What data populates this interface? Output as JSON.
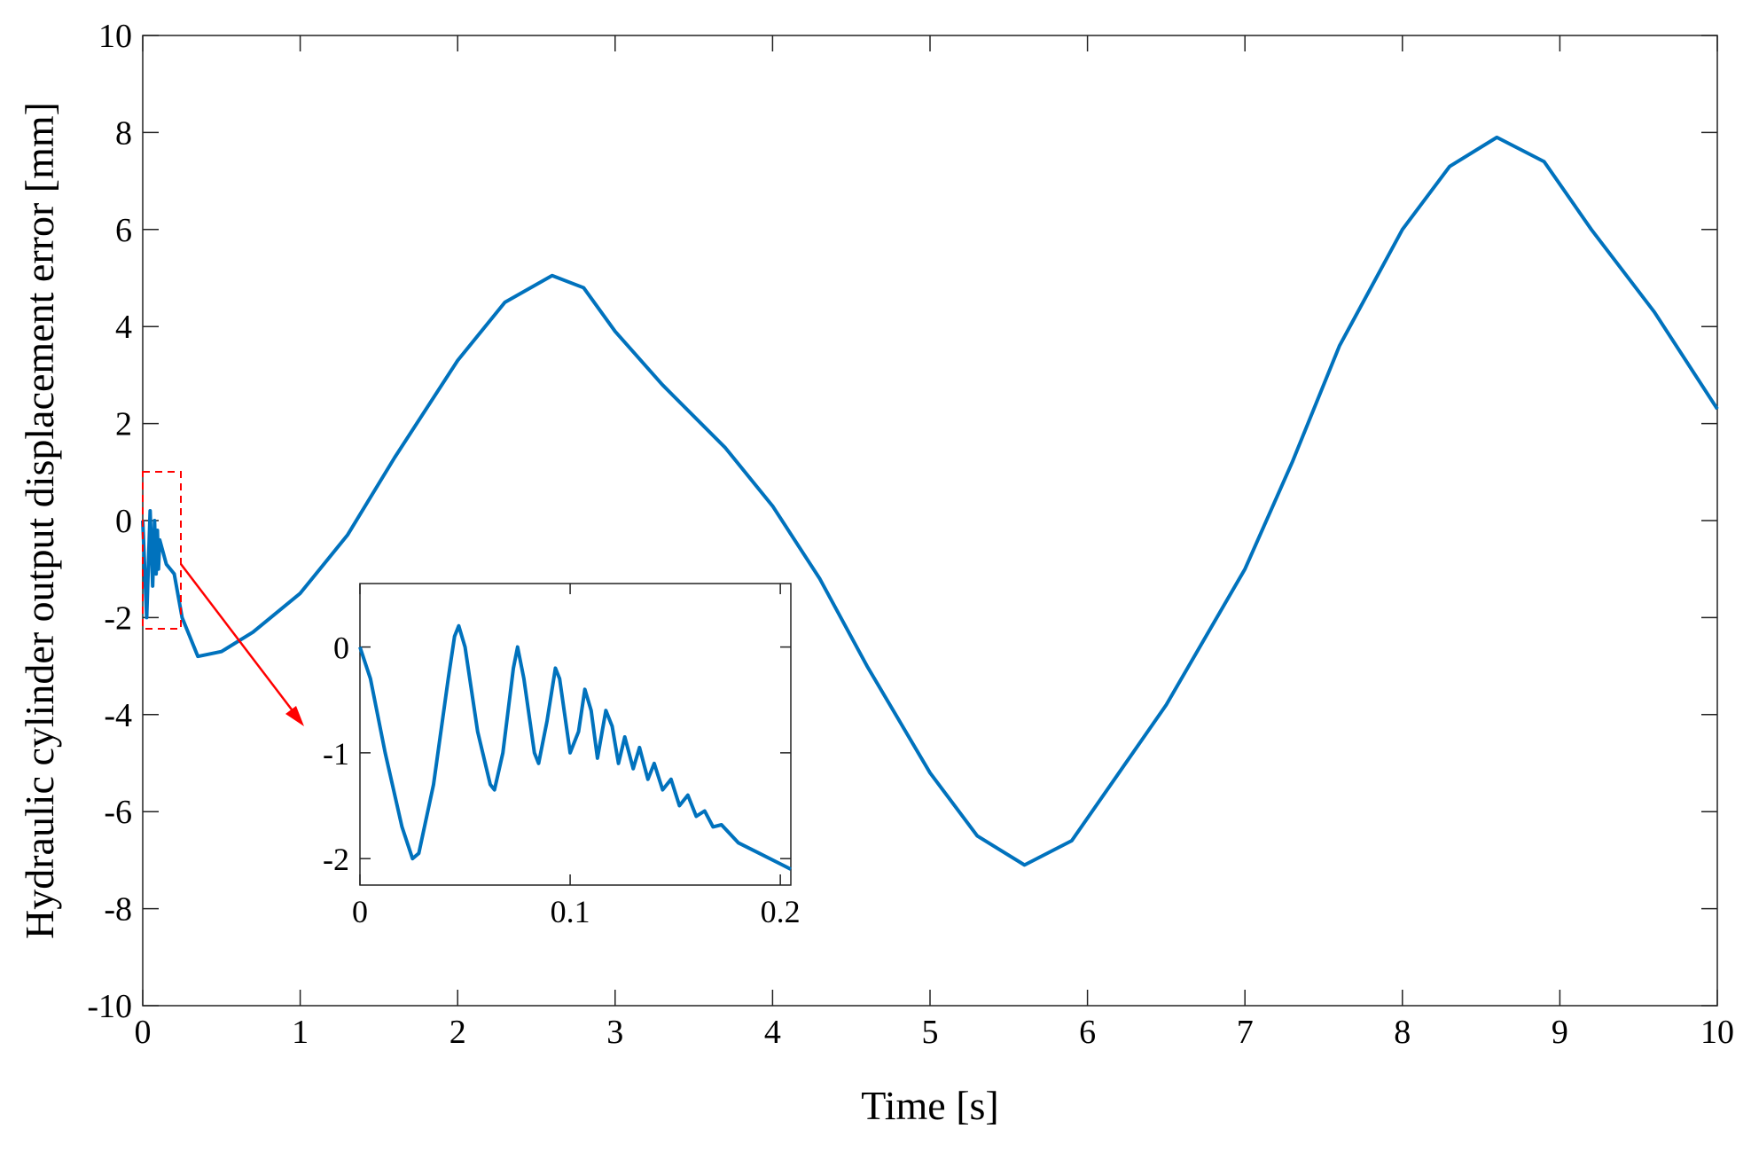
{
  "chart_data": [
    {
      "type": "line",
      "xlabel": "Time [s]",
      "ylabel": "Hydraulic cylinder output displacement error [mm]",
      "xlim": [
        0,
        10
      ],
      "ylim": [
        -10,
        10
      ],
      "xticks": [
        0,
        1,
        2,
        3,
        4,
        5,
        6,
        7,
        8,
        9,
        10
      ],
      "yticks": [
        -10,
        -8,
        -6,
        -4,
        -2,
        0,
        2,
        4,
        6,
        8,
        10
      ],
      "x": [
        0,
        0.025,
        0.047,
        0.063,
        0.075,
        0.085,
        0.093,
        0.1,
        0.108,
        0.15,
        0.2,
        0.25,
        0.35,
        0.5,
        0.7,
        1.0,
        1.3,
        1.6,
        2.0,
        2.3,
        2.6,
        2.8,
        3.0,
        3.3,
        3.7,
        4.0,
        4.3,
        4.6,
        5.0,
        5.3,
        5.6,
        5.9,
        6.2,
        6.5,
        7.0,
        7.3,
        7.6,
        8.0,
        8.3,
        8.6,
        8.9,
        9.2,
        9.6,
        10
      ],
      "series": [
        {
          "color": "#0072bd",
          "values": [
            0,
            -2,
            0.2,
            -1.35,
            0,
            -1.1,
            -0.2,
            -1.0,
            -0.4,
            -0.9,
            -1.1,
            -2.0,
            -2.8,
            -2.7,
            -2.3,
            -1.5,
            -0.3,
            1.3,
            3.3,
            4.5,
            5.05,
            4.8,
            3.9,
            2.8,
            1.5,
            0.3,
            -1.2,
            -3.0,
            -5.2,
            -6.5,
            -7.1,
            -6.6,
            -5.2,
            -3.8,
            -1.0,
            1.2,
            3.6,
            6.0,
            7.3,
            7.9,
            7.4,
            6.0,
            4.3,
            2.3
          ]
        }
      ]
    },
    {
      "type": "line",
      "xlim": [
        0,
        0.205
      ],
      "ylim": [
        -2.25,
        0.6
      ],
      "xticks": [
        0,
        0.1,
        0.2
      ],
      "yticks": [
        -2,
        -1,
        0
      ],
      "x": [
        0,
        0.005,
        0.012,
        0.02,
        0.025,
        0.028,
        0.035,
        0.042,
        0.045,
        0.047,
        0.05,
        0.056,
        0.062,
        0.064,
        0.068,
        0.073,
        0.075,
        0.078,
        0.083,
        0.085,
        0.089,
        0.093,
        0.095,
        0.1,
        0.104,
        0.107,
        0.11,
        0.113,
        0.117,
        0.12,
        0.123,
        0.126,
        0.13,
        0.133,
        0.137,
        0.14,
        0.144,
        0.148,
        0.152,
        0.156,
        0.16,
        0.164,
        0.168,
        0.172,
        0.18,
        0.19,
        0.2,
        0.205
      ],
      "series": [
        {
          "color": "#0072bd",
          "values": [
            0,
            -0.3,
            -1.0,
            -1.7,
            -2.0,
            -1.95,
            -1.3,
            -0.3,
            0.1,
            0.2,
            0.0,
            -0.8,
            -1.3,
            -1.35,
            -1.0,
            -0.2,
            0.0,
            -0.3,
            -1.0,
            -1.1,
            -0.7,
            -0.2,
            -0.3,
            -1.0,
            -0.8,
            -0.4,
            -0.6,
            -1.05,
            -0.6,
            -0.75,
            -1.1,
            -0.85,
            -1.15,
            -0.95,
            -1.25,
            -1.1,
            -1.35,
            -1.25,
            -1.5,
            -1.4,
            -1.6,
            -1.55,
            -1.7,
            -1.68,
            -1.85,
            -1.95,
            -2.05,
            -2.1
          ]
        }
      ]
    }
  ]
}
